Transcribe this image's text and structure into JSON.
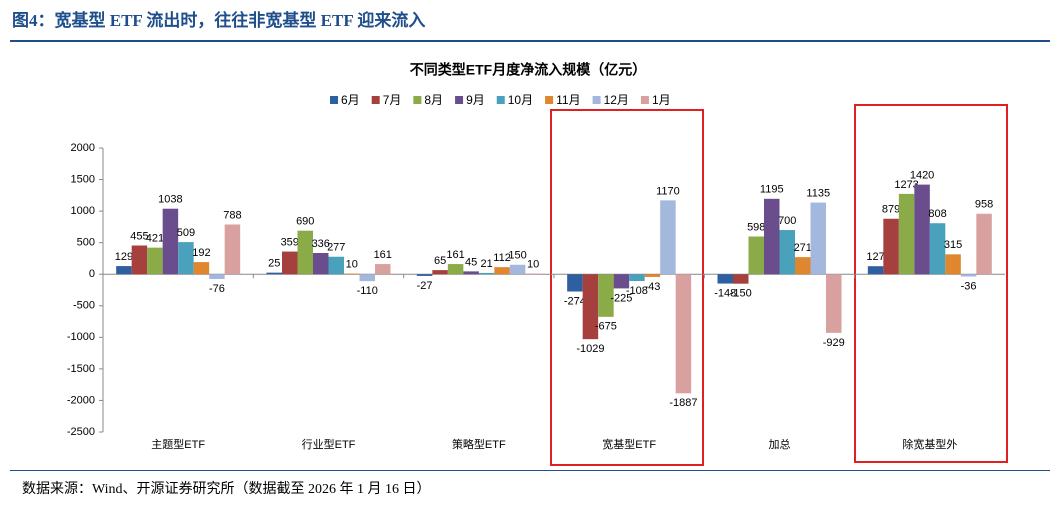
{
  "header": {
    "title": "图4：宽基型 ETF 流出时，往往非宽基型 ETF 迎来流入"
  },
  "chart_data": {
    "type": "bar",
    "title": "不同类型ETF月度净流入规模（亿元）",
    "categories": [
      "主题型ETF",
      "行业型ETF",
      "策略型ETF",
      "宽基型ETF",
      "加总",
      "除宽基型外"
    ],
    "series": [
      {
        "name": "6月",
        "color": "#2e5fa0",
        "values": [
          129,
          25,
          -27,
          -274,
          -148,
          127
        ]
      },
      {
        "name": "7月",
        "color": "#a5403e",
        "values": [
          455,
          359,
          65,
          -1029,
          -150,
          879
        ]
      },
      {
        "name": "8月",
        "color": "#8aab48",
        "values": [
          421,
          690,
          161,
          -675,
          598,
          1273
        ]
      },
      {
        "name": "9月",
        "color": "#6a4d8d",
        "values": [
          1038,
          336,
          45,
          -225,
          1195,
          1420
        ]
      },
      {
        "name": "10月",
        "color": "#4aa1bc",
        "values": [
          509,
          277,
          21,
          -108,
          700,
          808
        ]
      },
      {
        "name": "11月",
        "color": "#e0862f",
        "values": [
          192,
          10,
          112,
          -43,
          271,
          315
        ]
      },
      {
        "name": "12月",
        "color": "#a4b8de",
        "values": [
          -76,
          -110,
          150,
          1170,
          1135,
          -36
        ]
      },
      {
        "name": "1月",
        "color": "#d9a0a0",
        "values": [
          788,
          161,
          10,
          -1887,
          -929,
          958
        ]
      }
    ],
    "ylim": [
      -2500,
      2000
    ],
    "yticks": [
      -2500,
      -2000,
      -1500,
      -1000,
      -500,
      0,
      500,
      1000,
      1500,
      2000
    ]
  },
  "footer": {
    "source": "数据来源：Wind、开源证券研究所（数据截至 2026 年 1 月 16 日）"
  }
}
